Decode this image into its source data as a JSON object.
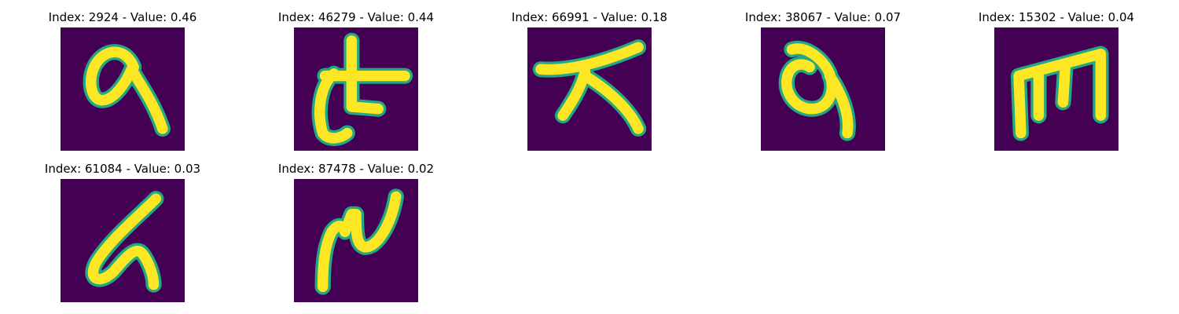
{
  "background_color": "#440154",
  "stroke_color": "#fde725",
  "edge_color": "#22a884",
  "panels": [
    {
      "title": "Index: 2924 - Value: 0.46"
    },
    {
      "title": "Index: 46279 - Value: 0.44"
    },
    {
      "title": "Index: 66991 - Value: 0.18"
    },
    {
      "title": "Index: 38067 - Value: 0.07"
    },
    {
      "title": "Index: 15302 - Value: 0.04"
    },
    {
      "title": "Index: 61084 - Value: 0.03"
    },
    {
      "title": "Index: 87478 - Value: 0.02"
    }
  ]
}
